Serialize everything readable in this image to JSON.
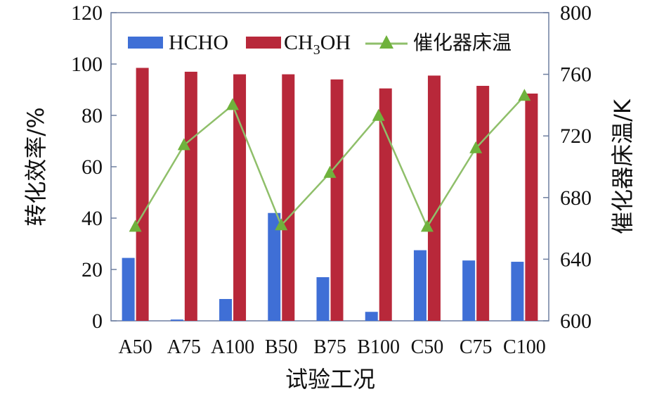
{
  "chart_data": {
    "type": "bar",
    "categories": [
      "A50",
      "A75",
      "A100",
      "B50",
      "B75",
      "B100",
      "C50",
      "C75",
      "C100"
    ],
    "series": [
      {
        "name": "HCHO",
        "kind": "bar",
        "axis": "left",
        "color": "#3f6fd6",
        "values": [
          24.5,
          0.5,
          8.5,
          42,
          17,
          3.5,
          27.5,
          23.5,
          23
        ]
      },
      {
        "name": "CH3OH",
        "kind": "bar",
        "axis": "left",
        "color": "#b8283a",
        "values": [
          98.5,
          97,
          96,
          96,
          94,
          90.5,
          95.5,
          91.5,
          88.5
        ]
      },
      {
        "name": "催化器床温",
        "kind": "line",
        "axis": "right",
        "color": "#8fbf6a",
        "marker_color": "#6fb23c",
        "values": [
          661,
          714,
          740,
          662,
          696,
          733,
          661,
          712,
          746
        ]
      }
    ],
    "xlabel": "试验工况",
    "ylabel_left": "转化效率/%",
    "ylabel_right": "催化器床温/K",
    "ylim_left": [
      0,
      120
    ],
    "yticks_left": [
      "0",
      "20",
      "40",
      "60",
      "80",
      "100",
      "120"
    ],
    "ylim_right": [
      600,
      800
    ],
    "yticks_right": [
      "600",
      "640",
      "680",
      "720",
      "760",
      "800"
    ],
    "legend": {
      "placement": "top",
      "items": [
        {
          "label_main": "HCHO",
          "label_sub": "",
          "label_tail": ""
        },
        {
          "label_main": "CH",
          "label_sub": "3",
          "label_tail": "OH"
        },
        {
          "label_main": "催化器床温",
          "label_sub": "",
          "label_tail": ""
        }
      ]
    },
    "grid": false
  }
}
